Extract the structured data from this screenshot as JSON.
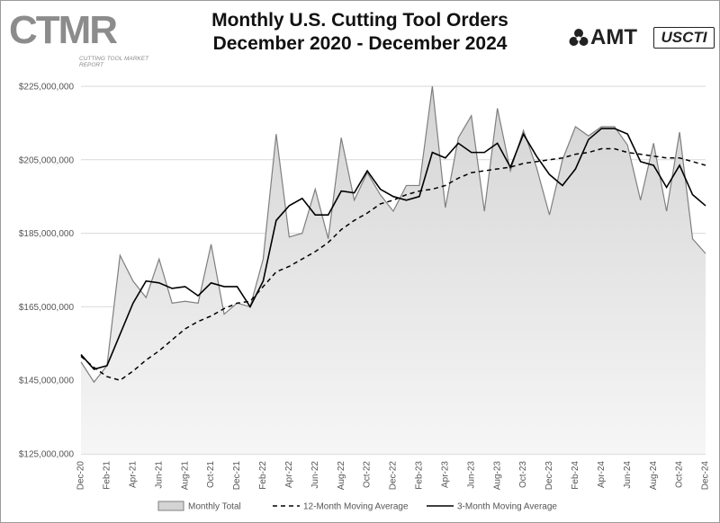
{
  "header": {
    "logo_left": "CTMR",
    "logo_left_sub": "CUTTING TOOL MARKET REPORT",
    "title_line1": "Monthly U.S. Cutting Tool Orders",
    "title_line2": "December 2020 - December 2024",
    "logo_right_amt": "AMT",
    "logo_right_usct": "USCTI"
  },
  "colors": {
    "area_fill_top": "#d4d4d4",
    "area_fill_bottom": "#f6f6f6",
    "area_stroke": "#7f7f7f",
    "line": "#000000",
    "grid": "#d9d9d9"
  },
  "chart_data": {
    "type": "area",
    "title": "Monthly U.S. Cutting Tool Orders December 2020 - December 2024",
    "ylim": [
      125000000,
      225000000
    ],
    "y_ticks": [
      125000000,
      145000000,
      165000000,
      185000000,
      205000000,
      225000000
    ],
    "y_tick_labels": [
      "$125,000,000",
      "$145,000,000",
      "$165,000,000",
      "$185,000,000",
      "$205,000,000",
      "$225,000,000"
    ],
    "grid": "horizontal",
    "legend_position": "bottom",
    "x": [
      "Dec-20",
      "Jan-21",
      "Feb-21",
      "Mar-21",
      "Apr-21",
      "May-21",
      "Jun-21",
      "Jul-21",
      "Aug-21",
      "Sep-21",
      "Oct-21",
      "Nov-21",
      "Dec-21",
      "Jan-22",
      "Feb-22",
      "Mar-22",
      "Apr-22",
      "May-22",
      "Jun-22",
      "Jul-22",
      "Aug-22",
      "Sep-22",
      "Oct-22",
      "Nov-22",
      "Dec-22",
      "Jan-23",
      "Feb-23",
      "Mar-23",
      "Apr-23",
      "May-23",
      "Jun-23",
      "Jul-23",
      "Aug-23",
      "Sep-23",
      "Oct-23",
      "Nov-23",
      "Dec-23",
      "Jan-24",
      "Feb-24",
      "Mar-24",
      "Apr-24",
      "May-24",
      "Jun-24",
      "Jul-24",
      "Aug-24",
      "Sep-24",
      "Oct-24",
      "Nov-24",
      "Dec-24"
    ],
    "x_tick_labels": [
      "Dec-20",
      "Feb-21",
      "Apr-21",
      "Jun-21",
      "Aug-21",
      "Oct-21",
      "Dec-21",
      "Feb-22",
      "Apr-22",
      "Jun-22",
      "Aug-22",
      "Oct-22",
      "Dec-22",
      "Feb-23",
      "Apr-23",
      "Jun-23",
      "Aug-23",
      "Oct-23",
      "Dec-23",
      "Feb-24",
      "Apr-24",
      "Jun-24",
      "Aug-24",
      "Oct-24",
      "Dec-24"
    ],
    "series": [
      {
        "name": "Monthly Total",
        "kind": "area",
        "values": [
          150000000,
          144500000,
          149000000,
          179000000,
          172000000,
          167500000,
          178000000,
          166000000,
          166500000,
          166000000,
          182000000,
          163000000,
          166000000,
          165000000,
          178000000,
          212000000,
          184000000,
          185000000,
          197000000,
          183500000,
          211000000,
          194000000,
          201500000,
          195500000,
          191000000,
          198000000,
          198000000,
          225000000,
          192000000,
          211000000,
          217000000,
          191000000,
          219000000,
          202000000,
          213000000,
          203000000,
          190000000,
          205000000,
          214000000,
          211500000,
          214000000,
          214000000,
          209000000,
          194000000,
          209500000,
          191000000,
          212500000,
          183500000,
          179500000
        ]
      },
      {
        "name": "12-Month Moving Average",
        "kind": "dashed",
        "values": [
          151500000,
          148500000,
          146000000,
          145000000,
          147500000,
          150500000,
          153000000,
          156000000,
          159000000,
          161000000,
          162500000,
          164500000,
          166000000,
          166500000,
          170500000,
          174500000,
          176000000,
          178000000,
          180000000,
          182500000,
          186000000,
          188500000,
          190500000,
          193000000,
          194000000,
          195500000,
          196500000,
          197000000,
          198000000,
          200000000,
          201500000,
          202000000,
          202500000,
          203000000,
          204000000,
          204500000,
          205000000,
          205500000,
          206500000,
          207000000,
          208000000,
          208000000,
          207000000,
          206500000,
          206000000,
          205500000,
          205500000,
          204500000,
          203500000
        ]
      },
      {
        "name": "3-Month Moving Average",
        "kind": "solid",
        "values": [
          152000000,
          148000000,
          149000000,
          157500000,
          166000000,
          172000000,
          171500000,
          170000000,
          170500000,
          168000000,
          171500000,
          170500000,
          170500000,
          165000000,
          172000000,
          188500000,
          192500000,
          194500000,
          190000000,
          190000000,
          196500000,
          196000000,
          202000000,
          197000000,
          195000000,
          194000000,
          195000000,
          207000000,
          205500000,
          209500000,
          207000000,
          207000000,
          209500000,
          203000000,
          212000000,
          206000000,
          201000000,
          198000000,
          202500000,
          210500000,
          213500000,
          213500000,
          212000000,
          204500000,
          203500000,
          197500000,
          203500000,
          195500000,
          192500000
        ]
      }
    ]
  }
}
